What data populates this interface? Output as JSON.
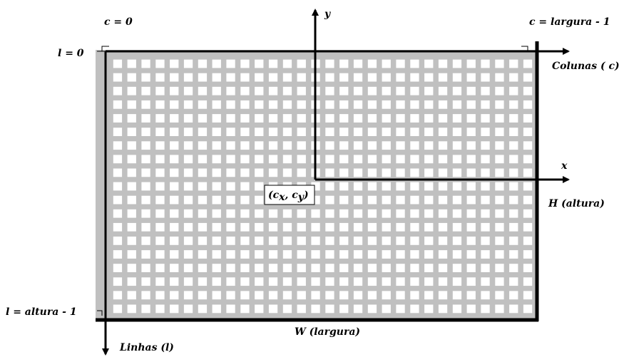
{
  "labels": {
    "c_zero": "c = 0",
    "c_last": "c = largura - 1",
    "l_zero": "l = 0",
    "l_last": "l = altura - 1",
    "columns_axis": "Colunas ( c)",
    "rows_axis": "Linhas (l)",
    "y_axis": "y",
    "x_axis": "x",
    "height": "H (altura)",
    "width": "W (largura)",
    "center_open": "(c",
    "center_sub_x": "x",
    "center_sep": ", c",
    "center_sub_y": "y",
    "center_close": ")"
  },
  "colors": {
    "grid": "#c0c0c0",
    "cell": "#ffffff",
    "axis": "#000000"
  },
  "grid": {
    "columns": 30,
    "rows": 19
  }
}
